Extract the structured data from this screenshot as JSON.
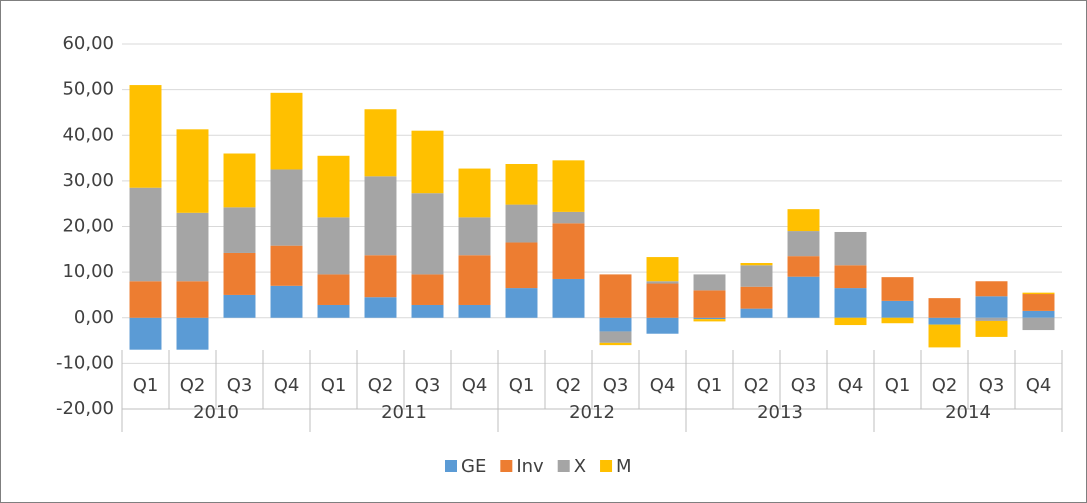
{
  "chart_data": {
    "type": "bar",
    "stacked": true,
    "categories": [
      "Q1",
      "Q2",
      "Q3",
      "Q4",
      "Q1",
      "Q2",
      "Q3",
      "Q4",
      "Q1",
      "Q2",
      "Q3",
      "Q4",
      "Q1",
      "Q2",
      "Q3",
      "Q4",
      "Q1",
      "Q2",
      "Q3",
      "Q4"
    ],
    "year_groups": [
      "2010",
      "2011",
      "2012",
      "2013",
      "2014"
    ],
    "series": [
      {
        "name": "GE",
        "color": "#5b9bd5",
        "values": [
          -7,
          -7,
          5,
          7,
          2.8,
          4.5,
          2.8,
          2.8,
          6.5,
          8.5,
          -3,
          -3.5,
          -0.3,
          2,
          9,
          6.5,
          3.7,
          -1.5,
          4.7,
          1.5
        ]
      },
      {
        "name": "Inv",
        "color": "#ed7d31",
        "values": [
          8,
          8,
          9.2,
          8.8,
          6.7,
          9.2,
          6.7,
          10.9,
          10,
          12.2,
          9.5,
          7.5,
          6,
          4.8,
          4.5,
          5,
          5.2,
          4.3,
          3.3,
          3.7
        ]
      },
      {
        "name": "X",
        "color": "#a5a5a5",
        "values": [
          20.5,
          15,
          10,
          16.7,
          12.5,
          17.3,
          17.8,
          8.3,
          8.3,
          2.5,
          -2.5,
          0.5,
          3.5,
          4.7,
          5.5,
          7.3,
          0,
          0,
          -0.7,
          -2.7
        ]
      },
      {
        "name": "M",
        "color": "#ffc000",
        "values": [
          22.5,
          18.3,
          11.8,
          16.8,
          13.5,
          14.7,
          13.7,
          10.7,
          8.9,
          11.3,
          -0.5,
          5.3,
          -0.5,
          0.5,
          4.8,
          -1.6,
          -1.2,
          -5,
          -3.5,
          0.3
        ]
      }
    ],
    "ylim": [
      -20,
      60
    ],
    "yticks": [
      {
        "value": -20,
        "label": "-20,00"
      },
      {
        "value": -10,
        "label": "-10,00"
      },
      {
        "value": 0,
        "label": "0,00"
      },
      {
        "value": 10,
        "label": "10,00"
      },
      {
        "value": 20,
        "label": "20,00"
      },
      {
        "value": 30,
        "label": "30,00"
      },
      {
        "value": 40,
        "label": "40,00"
      },
      {
        "value": 50,
        "label": "50,00"
      },
      {
        "value": 60,
        "label": "60,00"
      }
    ],
    "grid": true,
    "legend": "bottom"
  }
}
